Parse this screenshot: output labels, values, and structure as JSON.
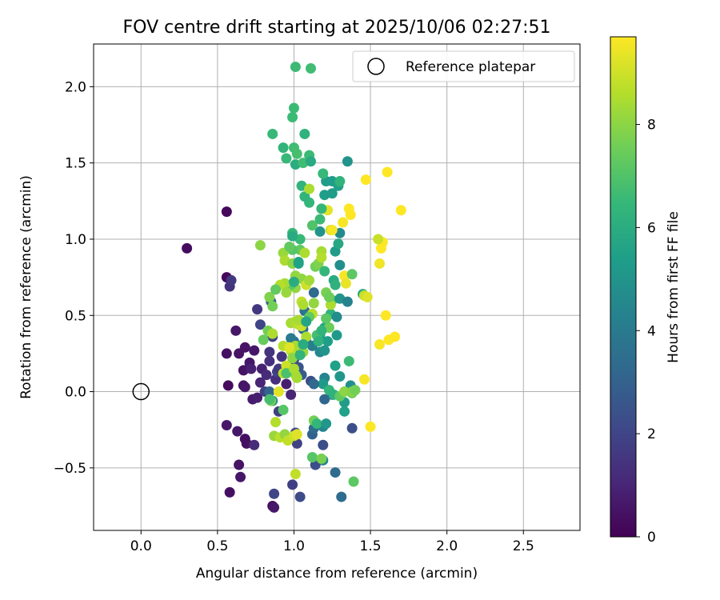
{
  "chart_data": {
    "type": "scatter",
    "title": "FOV centre drift starting at 2025/10/06 02:27:51",
    "xlabel": "Angular distance from reference (arcmin)",
    "ylabel": "Rotation from reference (arcmin)",
    "xlim": [
      -0.31,
      2.87
    ],
    "ylim": [
      -0.91,
      2.28
    ],
    "xticks": [
      0.0,
      0.5,
      1.0,
      1.5,
      2.0,
      2.5
    ],
    "xtick_labels": [
      "0.0",
      "0.5",
      "1.0",
      "1.5",
      "2.0",
      "2.5"
    ],
    "yticks": [
      -0.5,
      0.0,
      0.5,
      1.0,
      1.5,
      2.0
    ],
    "ytick_labels": [
      "−0.5",
      "0.0",
      "0.5",
      "1.0",
      "1.5",
      "2.0"
    ],
    "grid": true,
    "legend": {
      "position": "top-right",
      "entries": [
        "Reference platepar"
      ]
    },
    "reference_point": {
      "label": "Reference platepar",
      "x": 0.0,
      "y": 0.0
    },
    "colorbar": {
      "label": "Hours from first FF file",
      "range": [
        0,
        9.7
      ],
      "ticks": [
        0,
        2,
        4,
        6,
        8
      ],
      "tick_labels": [
        "0",
        "2",
        "4",
        "6",
        "8"
      ],
      "colormap": [
        "#440154",
        "#482878",
        "#3e4a89",
        "#31688e",
        "#26828e",
        "#1f9e89",
        "#35b779",
        "#6ece58",
        "#b5de2b",
        "#fde725"
      ]
    },
    "points": [
      [
        0.56,
        1.18,
        0.2
      ],
      [
        0.3,
        0.94,
        0.3
      ],
      [
        0.56,
        0.75,
        0.2
      ],
      [
        0.58,
        0.69,
        1.4
      ],
      [
        0.59,
        0.73,
        1.6
      ],
      [
        0.56,
        0.25,
        0.4
      ],
      [
        0.62,
        0.4,
        0.6
      ],
      [
        0.64,
        0.25,
        0.5
      ],
      [
        0.67,
        0.14,
        0.5
      ],
      [
        0.68,
        0.29,
        0.5
      ],
      [
        0.71,
        0.19,
        0.6
      ],
      [
        0.74,
        0.27,
        0.6
      ],
      [
        0.72,
        0.15,
        0.9
      ],
      [
        0.76,
        0.54,
        1.6
      ],
      [
        0.78,
        0.44,
        2.0
      ],
      [
        0.57,
        0.04,
        0.3
      ],
      [
        0.67,
        0.04,
        0.5
      ],
      [
        0.68,
        0.03,
        0.6
      ],
      [
        0.73,
        -0.05,
        0.7
      ],
      [
        0.76,
        -0.04,
        0.8
      ],
      [
        0.78,
        0.06,
        1.0
      ],
      [
        0.79,
        0.15,
        0.9
      ],
      [
        0.82,
        0.11,
        1.2
      ],
      [
        0.84,
        0.2,
        1.3
      ],
      [
        0.84,
        0.26,
        1.4
      ],
      [
        0.86,
        0.36,
        2.0
      ],
      [
        0.85,
        0.59,
        3.0
      ],
      [
        0.81,
        0.0,
        1.8
      ],
      [
        0.84,
        0.0,
        3.1
      ],
      [
        0.86,
        -0.06,
        4.5
      ],
      [
        0.88,
        0.08,
        1.3
      ],
      [
        0.89,
        0.13,
        2.0
      ],
      [
        0.9,
        0.15,
        1.6
      ],
      [
        0.92,
        0.23,
        1.4
      ],
      [
        0.9,
        -0.13,
        1.8
      ],
      [
        0.95,
        0.05,
        0.8
      ],
      [
        0.98,
        -0.02,
        1.0
      ],
      [
        0.56,
        -0.22,
        0.6
      ],
      [
        0.63,
        -0.26,
        0.6
      ],
      [
        0.68,
        -0.31,
        0.4
      ],
      [
        0.69,
        -0.34,
        0.4
      ],
      [
        0.74,
        -0.35,
        1.2
      ],
      [
        0.64,
        -0.48,
        0.5
      ],
      [
        0.65,
        -0.56,
        0.6
      ],
      [
        0.58,
        -0.66,
        0.4
      ],
      [
        0.86,
        -0.75,
        0.3
      ],
      [
        0.87,
        -0.76,
        0.6
      ],
      [
        0.87,
        -0.67,
        2.0
      ],
      [
        0.99,
        -0.61,
        1.8
      ],
      [
        1.04,
        -0.69,
        2.2
      ],
      [
        1.31,
        -0.69,
        3.4
      ],
      [
        1.27,
        -0.53,
        3.4
      ],
      [
        1.19,
        -0.45,
        4.3
      ],
      [
        1.14,
        -0.48,
        2.3
      ],
      [
        1.19,
        -0.35,
        2.3
      ],
      [
        1.12,
        -0.28,
        3.0
      ],
      [
        1.13,
        -0.24,
        3.4
      ],
      [
        1.02,
        -0.34,
        1.9
      ],
      [
        1.01,
        -0.27,
        2.1
      ],
      [
        1.38,
        -0.24,
        2.3
      ],
      [
        1.19,
        -0.23,
        4.4
      ],
      [
        1.2,
        -0.05,
        3.2
      ],
      [
        1.25,
        -0.02,
        3.6
      ],
      [
        1.33,
        -0.07,
        5.3
      ],
      [
        1.33,
        -0.13,
        5.5
      ],
      [
        1.37,
        0.04,
        4.8
      ],
      [
        1.38,
        -0.01,
        7.5
      ],
      [
        1.36,
        0.2,
        6.6
      ],
      [
        1.3,
        0.1,
        5.1
      ],
      [
        1.2,
        0.09,
        4.4
      ],
      [
        1.19,
        0.05,
        5.2
      ],
      [
        1.11,
        0.07,
        2.3
      ],
      [
        1.13,
        0.05,
        3.3
      ],
      [
        1.05,
        0.11,
        2.8
      ],
      [
        1.03,
        0.16,
        2.5
      ],
      [
        1.0,
        0.21,
        2.2
      ],
      [
        1.02,
        0.27,
        2.9
      ],
      [
        1.0,
        0.33,
        3.6
      ],
      [
        0.98,
        0.35,
        4.0
      ],
      [
        1.06,
        0.41,
        3.5
      ],
      [
        1.08,
        0.33,
        3.8
      ],
      [
        1.12,
        0.3,
        4.2
      ],
      [
        1.17,
        0.26,
        4.5
      ],
      [
        1.2,
        0.27,
        5.0
      ],
      [
        1.22,
        0.33,
        5.4
      ],
      [
        1.17,
        0.37,
        5.6
      ],
      [
        1.2,
        0.42,
        5.8
      ],
      [
        1.23,
        0.42,
        7.5
      ],
      [
        1.28,
        0.37,
        5.2
      ],
      [
        1.24,
        0.51,
        6.2
      ],
      [
        1.25,
        0.6,
        6.6
      ],
      [
        1.21,
        0.65,
        7.7
      ],
      [
        1.13,
        0.65,
        3.3
      ],
      [
        1.07,
        0.53,
        3.7
      ],
      [
        1.05,
        0.59,
        8.8
      ],
      [
        1.3,
        0.83,
        4.8
      ],
      [
        1.27,
        0.92,
        5.3
      ],
      [
        1.3,
        1.04,
        4.6
      ],
      [
        1.29,
        0.97,
        5.8
      ],
      [
        1.24,
        1.06,
        8.9
      ],
      [
        1.22,
        1.19,
        9.3
      ],
      [
        1.21,
        1.38,
        5.3
      ],
      [
        1.25,
        1.38,
        5.4
      ],
      [
        1.29,
        1.35,
        5.5
      ],
      [
        1.3,
        1.38,
        6.3
      ],
      [
        1.18,
        1.2,
        6.4
      ],
      [
        1.17,
        1.13,
        6.6
      ],
      [
        1.2,
        1.29,
        5.4
      ],
      [
        1.19,
        1.43,
        6.5
      ],
      [
        1.1,
        1.24,
        6.4
      ],
      [
        1.05,
        1.35,
        6.3
      ],
      [
        1.07,
        1.28,
        6.3
      ],
      [
        1.1,
        1.33,
        8.5
      ],
      [
        1.17,
        1.05,
        5.0
      ],
      [
        1.12,
        1.09,
        7.0
      ],
      [
        1.04,
        1.0,
        6.5
      ],
      [
        0.99,
        1.04,
        6.5
      ],
      [
        0.99,
        1.02,
        5.9
      ],
      [
        1.04,
        0.93,
        7.3
      ],
      [
        0.99,
        0.93,
        7.1
      ],
      [
        0.93,
        0.91,
        8.2
      ],
      [
        0.97,
        0.95,
        7.3
      ],
      [
        0.94,
        0.86,
        8.5
      ],
      [
        0.99,
        0.84,
        8.0
      ],
      [
        1.03,
        0.84,
        5.5
      ],
      [
        1.03,
        0.85,
        5.6
      ],
      [
        1.07,
        0.91,
        8.5
      ],
      [
        1.05,
        0.74,
        8.0
      ],
      [
        1.01,
        0.68,
        8.1
      ],
      [
        1.01,
        0.76,
        8.1
      ],
      [
        0.98,
        0.7,
        7.2
      ],
      [
        0.94,
        0.71,
        8.4
      ],
      [
        0.91,
        0.7,
        8.6
      ],
      [
        0.84,
        0.62,
        7.8
      ],
      [
        0.86,
        0.56,
        7.6
      ],
      [
        0.83,
        0.4,
        7.6
      ],
      [
        0.86,
        0.38,
        8.5
      ],
      [
        0.93,
        0.3,
        8.6
      ],
      [
        0.98,
        0.27,
        8.7
      ],
      [
        1.01,
        0.3,
        8.4
      ],
      [
        0.98,
        0.45,
        8.4
      ],
      [
        1.01,
        0.46,
        8.5
      ],
      [
        1.03,
        0.44,
        8.7
      ],
      [
        1.05,
        0.43,
        8.9
      ],
      [
        1.06,
        0.57,
        8.5
      ],
      [
        1.08,
        0.7,
        9.0
      ],
      [
        1.1,
        0.73,
        8.3
      ],
      [
        1.12,
        0.51,
        8.7
      ],
      [
        1.14,
        0.82,
        7.6
      ],
      [
        1.16,
        0.84,
        7.8
      ],
      [
        1.18,
        0.92,
        8.4
      ],
      [
        1.2,
        0.79,
        6.4
      ],
      [
        1.18,
        0.88,
        8.6
      ],
      [
        1.28,
        0.49,
        4.7
      ],
      [
        1.3,
        0.61,
        5.0
      ],
      [
        1.35,
        0.59,
        4.3
      ],
      [
        1.33,
        0.76,
        9.6
      ],
      [
        1.34,
        0.71,
        9.4
      ],
      [
        1.38,
        0.77,
        7.2
      ],
      [
        1.45,
        0.64,
        6.0
      ],
      [
        1.46,
        0.63,
        8.9
      ],
      [
        1.48,
        0.62,
        9.2
      ],
      [
        1.46,
        0.08,
        9.6
      ],
      [
        1.5,
        -0.23,
        9.7
      ],
      [
        1.58,
        0.98,
        9.8
      ],
      [
        1.57,
        0.94,
        9.7
      ],
      [
        1.55,
        1.0,
        8.9
      ],
      [
        1.6,
        0.5,
        9.7
      ],
      [
        1.62,
        0.34,
        9.7
      ],
      [
        1.66,
        0.36,
        9.7
      ],
      [
        1.56,
        0.31,
        9.6
      ],
      [
        1.56,
        0.84,
        9.5
      ],
      [
        1.61,
        1.44,
        9.8
      ],
      [
        1.7,
        1.19,
        9.8
      ],
      [
        1.47,
        1.39,
        9.8
      ],
      [
        1.36,
        1.2,
        9.7
      ],
      [
        1.37,
        1.16,
        9.8
      ],
      [
        1.32,
        1.11,
        9.6
      ],
      [
        1.35,
        1.51,
        5.0
      ],
      [
        1.25,
        1.06,
        9.6
      ],
      [
        0.78,
        0.96,
        8.0
      ],
      [
        0.8,
        0.34,
        7.4
      ],
      [
        0.88,
        0.67,
        7.3
      ],
      [
        0.95,
        0.65,
        8.2
      ],
      [
        1.0,
        0.72,
        6.0
      ],
      [
        1.03,
        0.47,
        8.4
      ],
      [
        1.06,
        0.26,
        8.2
      ],
      [
        1.08,
        0.36,
        8.5
      ],
      [
        1.1,
        0.49,
        7.3
      ],
      [
        1.13,
        0.58,
        8.1
      ],
      [
        1.15,
        0.37,
        6.8
      ],
      [
        1.16,
        0.33,
        6.2
      ],
      [
        1.18,
        0.4,
        6.3
      ],
      [
        1.21,
        0.48,
        7.2
      ],
      [
        1.24,
        0.57,
        8.5
      ],
      [
        1.26,
        0.73,
        5.9
      ],
      [
        1.27,
        0.7,
        6.2
      ],
      [
        1.23,
        0.62,
        7.5
      ],
      [
        0.93,
        0.12,
        8.7
      ],
      [
        0.95,
        0.17,
        9.0
      ],
      [
        0.97,
        0.29,
        9.2
      ],
      [
        0.99,
        0.22,
        8.0
      ],
      [
        1.01,
        0.11,
        8.2
      ],
      [
        0.9,
        0.0,
        9.3
      ],
      [
        0.88,
        -0.2,
        8.6
      ],
      [
        0.87,
        -0.29,
        8.2
      ],
      [
        0.91,
        -0.3,
        8.7
      ],
      [
        0.94,
        -0.28,
        8.1
      ],
      [
        0.96,
        -0.32,
        8.8
      ],
      [
        1.0,
        -0.29,
        9.0
      ],
      [
        1.02,
        -0.28,
        9.2
      ],
      [
        1.13,
        -0.19,
        7.6
      ],
      [
        1.12,
        -0.43,
        7.1
      ],
      [
        1.18,
        -0.44,
        7.7
      ],
      [
        1.01,
        -0.54,
        8.8
      ],
      [
        1.39,
        -0.59,
        7.2
      ],
      [
        0.93,
        -0.12,
        7.1
      ],
      [
        0.85,
        -0.06,
        7.6
      ],
      [
        0.84,
        -0.05,
        6.8
      ],
      [
        0.95,
        0.12,
        6.9
      ],
      [
        1.0,
        0.15,
        8.5
      ],
      [
        1.02,
        0.09,
        8.4
      ],
      [
        1.04,
        0.24,
        6.3
      ],
      [
        1.06,
        0.31,
        6.0
      ],
      [
        1.08,
        0.46,
        5.7
      ],
      [
        1.15,
        -0.21,
        6.4
      ],
      [
        1.21,
        -0.21,
        5.1
      ],
      [
        1.23,
        0.01,
        6.4
      ],
      [
        1.26,
        -0.02,
        6.2
      ],
      [
        1.27,
        0.17,
        5.5
      ],
      [
        1.3,
        -0.03,
        7.3
      ],
      [
        1.33,
        0.0,
        8.0
      ],
      [
        1.38,
        0.0,
        7.9
      ],
      [
        1.4,
        0.01,
        7.6
      ],
      [
        0.95,
        1.53,
        6.5
      ],
      [
        0.93,
        1.6,
        6.3
      ],
      [
        0.86,
        1.69,
        6.5
      ],
      [
        1.0,
        1.6,
        6.7
      ],
      [
        1.02,
        1.56,
        6.8
      ],
      [
        1.01,
        1.49,
        6.0
      ],
      [
        1.06,
        1.5,
        6.7
      ],
      [
        1.1,
        1.55,
        6.6
      ],
      [
        1.11,
        1.51,
        5.9
      ],
      [
        0.99,
        1.8,
        6.6
      ],
      [
        1.0,
        1.86,
        6.6
      ],
      [
        1.07,
        1.69,
        6.2
      ],
      [
        1.01,
        2.13,
        6.6
      ],
      [
        1.11,
        2.12,
        6.7
      ],
      [
        1.25,
        1.3,
        5.3
      ]
    ]
  }
}
